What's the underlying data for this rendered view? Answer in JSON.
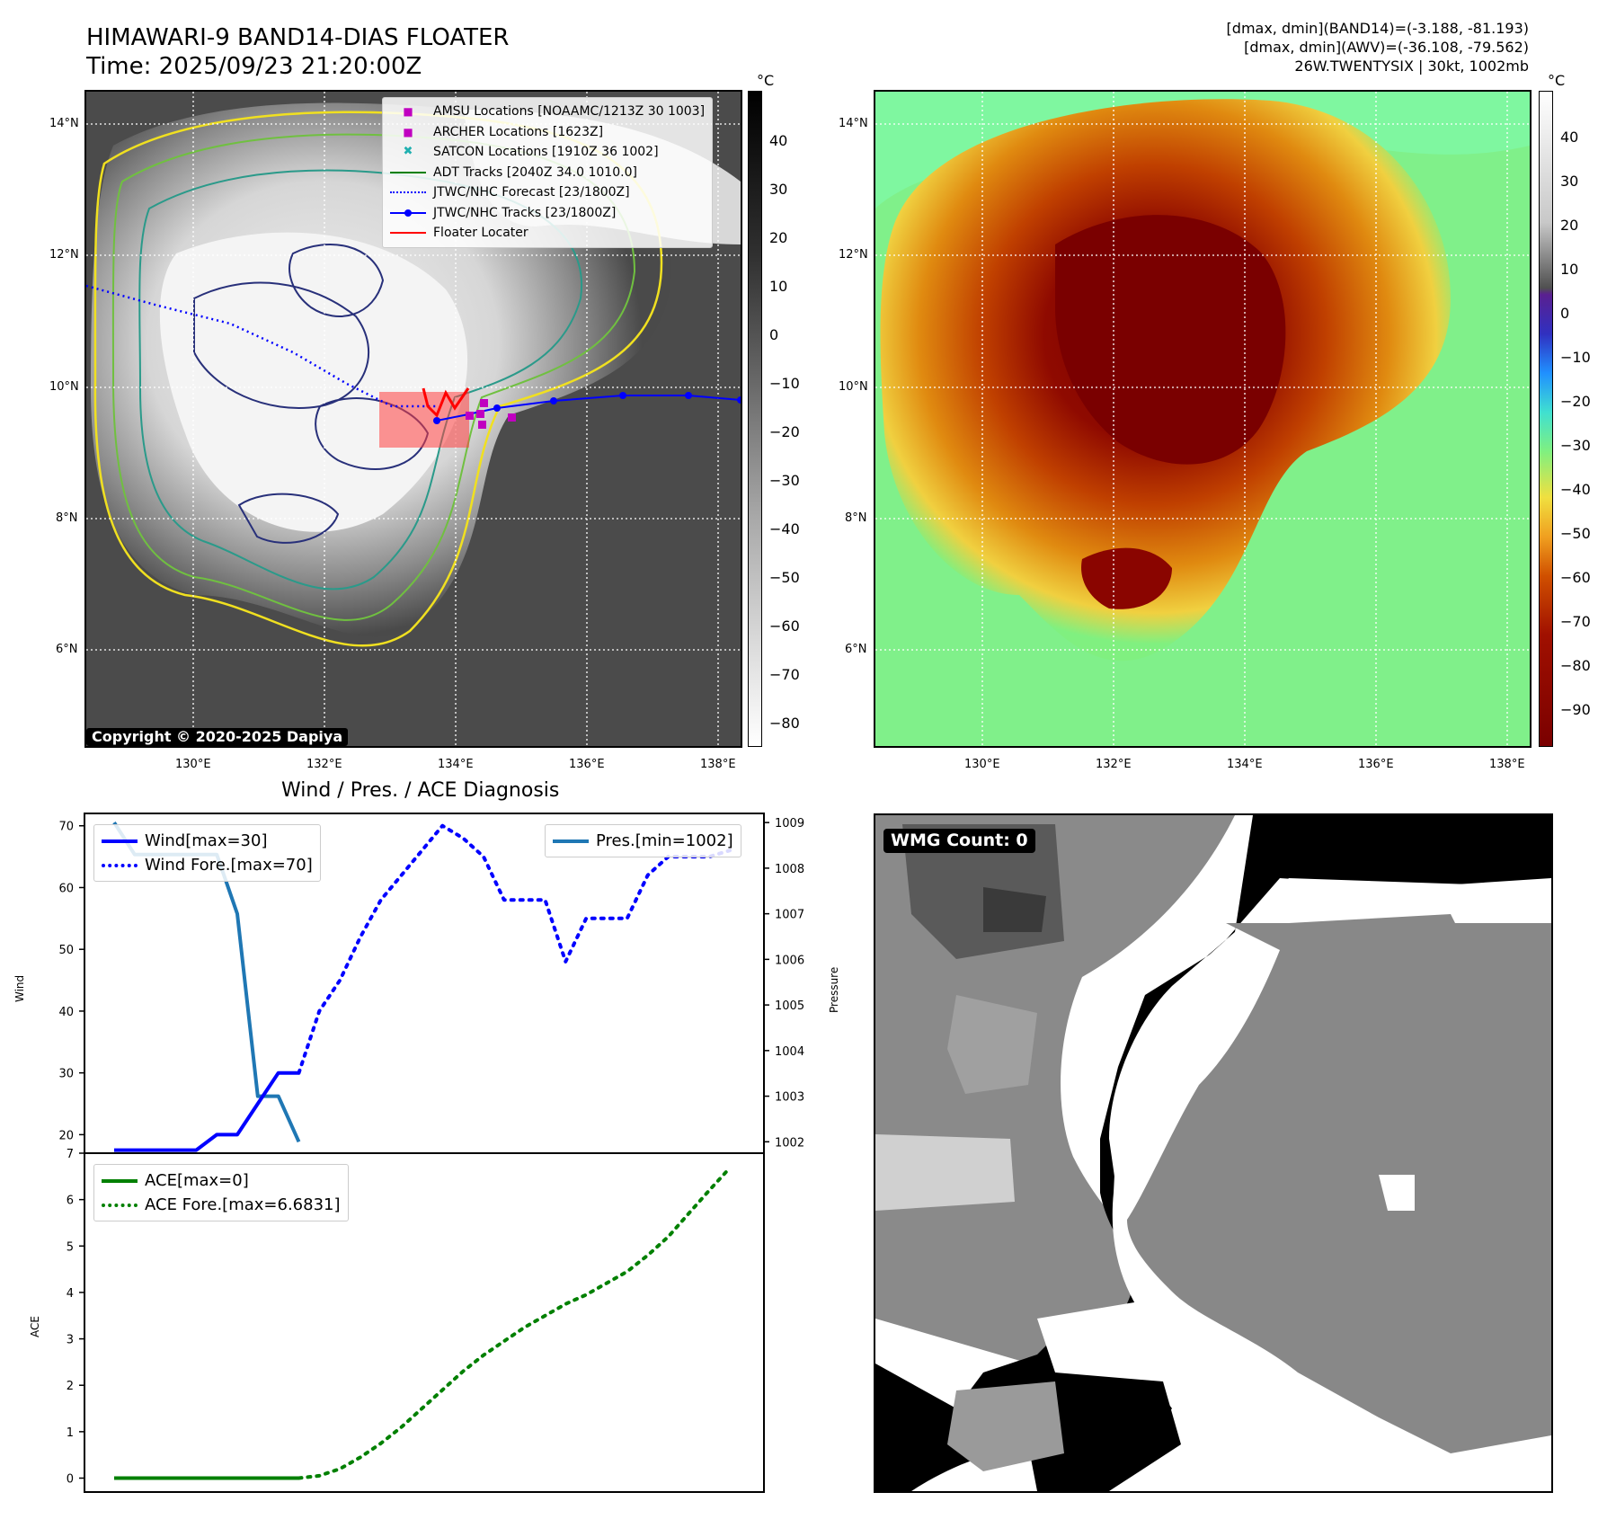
{
  "header": {
    "title": "HIMAWARI-9 BAND14-DIAS FLOATER",
    "time": "Time: 2025/09/23 21:20:00Z",
    "stats_line1": "[dmax, dmin](BAND14)=(-3.188, -81.193)",
    "stats_line2": "[dmax, dmin](AWV)=(-36.108, -79.562)",
    "stats_line3": "26W.TWENTYSIX | 30kt, 1002mb"
  },
  "map": {
    "lat_labels": [
      "14°N",
      "12°N",
      "10°N",
      "8°N",
      "6°N"
    ],
    "lon_labels": [
      "130°E",
      "132°E",
      "134°E",
      "136°E",
      "138°E"
    ],
    "copyright": "Copyright © 2020-2025 Dapiya",
    "legend": {
      "amsu": "AMSU Locations [NOAAMC/1213Z 30 1003]",
      "archer": "ARCHER Locations [1623Z]",
      "satcon": "SATCON Locations [1910Z 36 1002]",
      "adt": "ADT Tracks [2040Z 34.0 1010.0]",
      "forecast": "JTWC/NHC Forecast [23/1800Z]",
      "tracks": "JTWC/NHC Tracks [23/1800Z]",
      "floater": "Floater Locater"
    },
    "colors": {
      "amsu": "#c000c0",
      "archer": "#c000c0",
      "satcon": "#20b0b0",
      "adt": "#008000",
      "forecast": "#0000ff",
      "tracks": "#0000ff",
      "floater": "#ff0000"
    }
  },
  "colorbar_left": {
    "unit": "°C",
    "ticks": [
      "40",
      "30",
      "20",
      "10",
      "0",
      "−10",
      "−20",
      "−30",
      "−40",
      "−50",
      "−60",
      "−70",
      "−80"
    ]
  },
  "colorbar_right": {
    "unit": "°C",
    "ticks": [
      "40",
      "30",
      "20",
      "10",
      "0",
      "−10",
      "−20",
      "−30",
      "−40",
      "−50",
      "−60",
      "−70",
      "−80",
      "−90"
    ]
  },
  "diagnosis": {
    "title": "Wind / Pres. / ACE Diagnosis",
    "wind_axis_label": "Wind",
    "pres_axis_label": "Pressure",
    "ace_axis_label": "ACE",
    "wind_ticks": [
      "70",
      "60",
      "50",
      "40",
      "30",
      "20"
    ],
    "pres_ticks": [
      "1009",
      "1008",
      "1007",
      "1006",
      "1005",
      "1004",
      "1003",
      "1002"
    ],
    "ace_ticks": [
      "7",
      "6",
      "5",
      "4",
      "3",
      "2",
      "1",
      "0"
    ],
    "legend": {
      "wind": "Wind[max=30]",
      "wind_fore": "Wind Fore.[max=70]",
      "pres": "Pres.[min=1002]",
      "ace": "ACE[max=0]",
      "ace_fore": "ACE Fore.[max=6.6831]"
    },
    "colors": {
      "wind": "#0000ff",
      "pres": "#1f77b4",
      "ace": "#008000"
    }
  },
  "wmg": {
    "label": "WMG Count: 0"
  },
  "chart_data": [
    {
      "type": "line",
      "title": "Wind / Pres. / ACE Diagnosis",
      "ylabel": "Wind",
      "ylim": [
        17,
        72
      ],
      "series": [
        {
          "name": "Wind[max=30]",
          "x": [
            0,
            1,
            2,
            3,
            4,
            5,
            6,
            7,
            8,
            9
          ],
          "values": [
            15,
            15,
            15,
            15,
            15,
            20,
            20,
            25,
            30,
            30
          ]
        },
        {
          "name": "Wind Fore.[max=70]",
          "x": [
            9,
            10,
            11,
            12,
            13,
            14,
            15,
            16,
            17,
            18,
            19,
            20,
            21,
            22,
            23,
            24,
            25,
            26,
            27,
            28,
            29,
            30
          ],
          "values": [
            30,
            40,
            45,
            52,
            58,
            62,
            66,
            70,
            68,
            65,
            58,
            58,
            58,
            48,
            55,
            55,
            55,
            62,
            65,
            65,
            65,
            66
          ]
        }
      ]
    },
    {
      "type": "line",
      "ylabel": "Pressure",
      "ylim": [
        1001.75,
        1009.2
      ],
      "series": [
        {
          "name": "Pres.[min=1002]",
          "x": [
            0,
            1,
            2,
            3,
            4,
            5,
            6,
            7,
            8,
            9
          ],
          "values": [
            1009,
            1008.3,
            1008.3,
            1008.3,
            1008.3,
            1008.3,
            1007.0,
            1003.0,
            1003.0,
            1002.0
          ]
        }
      ]
    },
    {
      "type": "line",
      "ylabel": "ACE",
      "ylim": [
        -0.3,
        7
      ],
      "series": [
        {
          "name": "ACE[max=0]",
          "x": [
            0,
            1,
            2,
            3,
            4,
            5,
            6,
            7,
            8,
            9
          ],
          "values": [
            0,
            0,
            0,
            0,
            0,
            0,
            0,
            0,
            0,
            0
          ]
        },
        {
          "name": "ACE Fore.[max=6.6831]",
          "x": [
            9,
            10,
            11,
            12,
            13,
            14,
            15,
            16,
            17,
            18,
            19,
            20,
            21,
            22,
            23,
            24,
            25,
            26,
            27,
            28,
            29,
            30
          ],
          "values": [
            0,
            0.05,
            0.2,
            0.45,
            0.75,
            1.1,
            1.5,
            1.9,
            2.3,
            2.65,
            2.95,
            3.25,
            3.5,
            3.75,
            3.95,
            4.2,
            4.45,
            4.8,
            5.2,
            5.7,
            6.2,
            6.6831
          ]
        }
      ]
    }
  ]
}
